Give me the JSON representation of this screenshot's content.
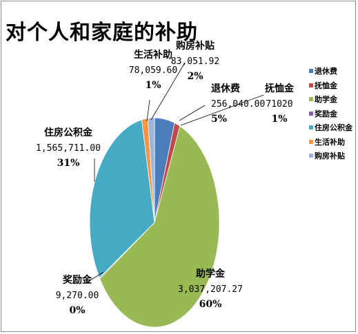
{
  "chart_data": {
    "type": "pie",
    "title": "对个人和家庭的补助",
    "slices": [
      {
        "name": "退休费",
        "value": "256,040.00",
        "amount": 256040.0,
        "percent": "5%",
        "color": "#4a7dba"
      },
      {
        "name": "抚恤金",
        "value": "71020",
        "amount": 71020,
        "percent": "1%",
        "color": "#be4b48"
      },
      {
        "name": "助学金",
        "value": "3,037,207.27",
        "amount": 3037207.27,
        "percent": "60%",
        "color": "#98b954"
      },
      {
        "name": "奖励金",
        "value": "9,270.00",
        "amount": 9270.0,
        "percent": "0%",
        "color": "#7d60a0"
      },
      {
        "name": "住房公积金",
        "value": "1,565,711.00",
        "amount": 1565711.0,
        "percent": "31%",
        "color": "#46aac4"
      },
      {
        "name": "生活补助",
        "value": "78,059.60",
        "amount": 78059.6,
        "percent": "1%",
        "color": "#f69546"
      },
      {
        "name": "购房补贴",
        "value": "83,051.92",
        "amount": 83051.92,
        "percent": "2%",
        "color": "#9eb5d6"
      }
    ],
    "legend_position": "right"
  }
}
